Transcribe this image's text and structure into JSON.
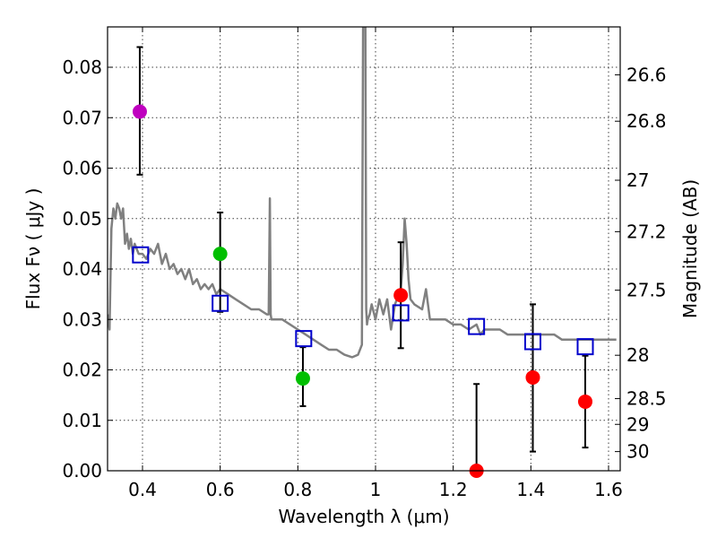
{
  "chart_data": {
    "type": "scatter",
    "xlabel": "Wavelength  λ (μm)",
    "ylabel": "Flux  Fν  ( μJy )",
    "y2label": "Magnitude (AB)",
    "xlim": [
      0.31,
      1.63
    ],
    "ylim": [
      0.0,
      0.088
    ],
    "grid": true,
    "x_ticks": [
      0.4,
      0.6,
      0.8,
      1.0,
      1.2,
      1.4,
      1.6
    ],
    "x_tick_labels": [
      "0.4",
      "0.6",
      "0.8",
      "1",
      "1.2",
      "1.4",
      "1.6"
    ],
    "y_ticks": [
      0.0,
      0.01,
      0.02,
      0.03,
      0.04,
      0.05,
      0.06,
      0.07,
      0.08
    ],
    "y_tick_labels": [
      "0.00",
      "0.01",
      "0.02",
      "0.03",
      "0.04",
      "0.05",
      "0.06",
      "0.07",
      "0.08"
    ],
    "mag_ticks": [
      {
        "label": "26.6",
        "flux": 0.0785
      },
      {
        "label": "26.8",
        "flux": 0.0693
      },
      {
        "label": "27",
        "flux": 0.0576
      },
      {
        "label": "27.2",
        "flux": 0.0474
      },
      {
        "label": "27.5",
        "flux": 0.0358
      },
      {
        "label": "28",
        "flux": 0.0229
      },
      {
        "label": "28.5",
        "flux": 0.0143
      },
      {
        "label": "29",
        "flux": 0.0092
      },
      {
        "label": "30",
        "flux": 0.0038
      }
    ],
    "series": [
      {
        "name": "model spectrum",
        "kind": "line",
        "color": "#808080",
        "x": [
          0.31,
          0.315,
          0.32,
          0.325,
          0.33,
          0.335,
          0.34,
          0.345,
          0.35,
          0.355,
          0.36,
          0.365,
          0.37,
          0.375,
          0.38,
          0.39,
          0.4,
          0.41,
          0.42,
          0.43,
          0.44,
          0.45,
          0.46,
          0.47,
          0.48,
          0.49,
          0.5,
          0.51,
          0.52,
          0.53,
          0.54,
          0.55,
          0.56,
          0.57,
          0.58,
          0.59,
          0.6,
          0.62,
          0.64,
          0.66,
          0.68,
          0.7,
          0.72,
          0.725,
          0.728,
          0.73,
          0.732,
          0.735,
          0.74,
          0.76,
          0.78,
          0.8,
          0.82,
          0.84,
          0.86,
          0.88,
          0.9,
          0.92,
          0.94,
          0.955,
          0.965,
          0.968,
          0.97,
          0.972,
          0.974,
          0.976,
          0.978,
          0.98,
          0.985,
          0.99,
          1.0,
          1.01,
          1.02,
          1.03,
          1.04,
          1.05,
          1.06,
          1.065,
          1.07,
          1.075,
          1.08,
          1.085,
          1.09,
          1.1,
          1.12,
          1.13,
          1.14,
          1.16,
          1.18,
          1.2,
          1.22,
          1.24,
          1.26,
          1.27,
          1.28,
          1.3,
          1.32,
          1.34,
          1.36,
          1.38,
          1.4,
          1.42,
          1.44,
          1.46,
          1.48,
          1.5,
          1.52,
          1.54,
          1.56,
          1.58,
          1.6,
          1.62
        ],
        "y": [
          0.031,
          0.028,
          0.048,
          0.052,
          0.05,
          0.053,
          0.052,
          0.05,
          0.052,
          0.045,
          0.047,
          0.044,
          0.046,
          0.043,
          0.045,
          0.043,
          0.043,
          0.042,
          0.044,
          0.043,
          0.045,
          0.041,
          0.043,
          0.04,
          0.041,
          0.039,
          0.04,
          0.038,
          0.04,
          0.037,
          0.038,
          0.036,
          0.037,
          0.036,
          0.037,
          0.035,
          0.036,
          0.035,
          0.034,
          0.033,
          0.032,
          0.032,
          0.031,
          0.031,
          0.054,
          0.031,
          0.03,
          0.03,
          0.03,
          0.03,
          0.029,
          0.028,
          0.027,
          0.026,
          0.025,
          0.024,
          0.024,
          0.023,
          0.0225,
          0.023,
          0.025,
          0.088,
          0.088,
          0.088,
          0.088,
          0.032,
          0.029,
          0.03,
          0.031,
          0.033,
          0.03,
          0.034,
          0.031,
          0.034,
          0.028,
          0.033,
          0.035,
          0.036,
          0.041,
          0.05,
          0.045,
          0.038,
          0.034,
          0.033,
          0.032,
          0.036,
          0.03,
          0.03,
          0.03,
          0.029,
          0.029,
          0.028,
          0.029,
          0.027,
          0.028,
          0.028,
          0.028,
          0.027,
          0.027,
          0.027,
          0.027,
          0.027,
          0.027,
          0.027,
          0.026,
          0.026,
          0.026,
          0.026,
          0.026,
          0.026,
          0.026,
          0.026
        ]
      },
      {
        "name": "model bandpass fluxes",
        "kind": "open-square",
        "color": "#0000cc",
        "x": [
          0.395,
          0.6,
          0.815,
          1.065,
          1.26,
          1.405,
          1.54
        ],
        "y": [
          0.0428,
          0.0332,
          0.0262,
          0.0313,
          0.0286,
          0.0256,
          0.0246
        ]
      },
      {
        "name": "observed flux points",
        "kind": "filled-circle",
        "x": [
          0.393,
          0.6,
          0.813,
          1.065,
          1.26,
          1.405,
          1.54
        ],
        "y": [
          0.0712,
          0.043,
          0.0183,
          0.0348,
          0.0,
          0.0185,
          0.0137
        ],
        "err_low": [
          0.0587,
          0.0315,
          0.0128,
          0.0243,
          0.0,
          0.0038,
          0.0046
        ],
        "err_high": [
          0.084,
          0.0512,
          0.0245,
          0.0453,
          0.0172,
          0.033,
          0.0228
        ],
        "colors": [
          "#bf00bf",
          "#00bf00",
          "#00bf00",
          "#ff0000",
          "#ff0000",
          "#ff0000",
          "#ff0000"
        ]
      }
    ]
  }
}
